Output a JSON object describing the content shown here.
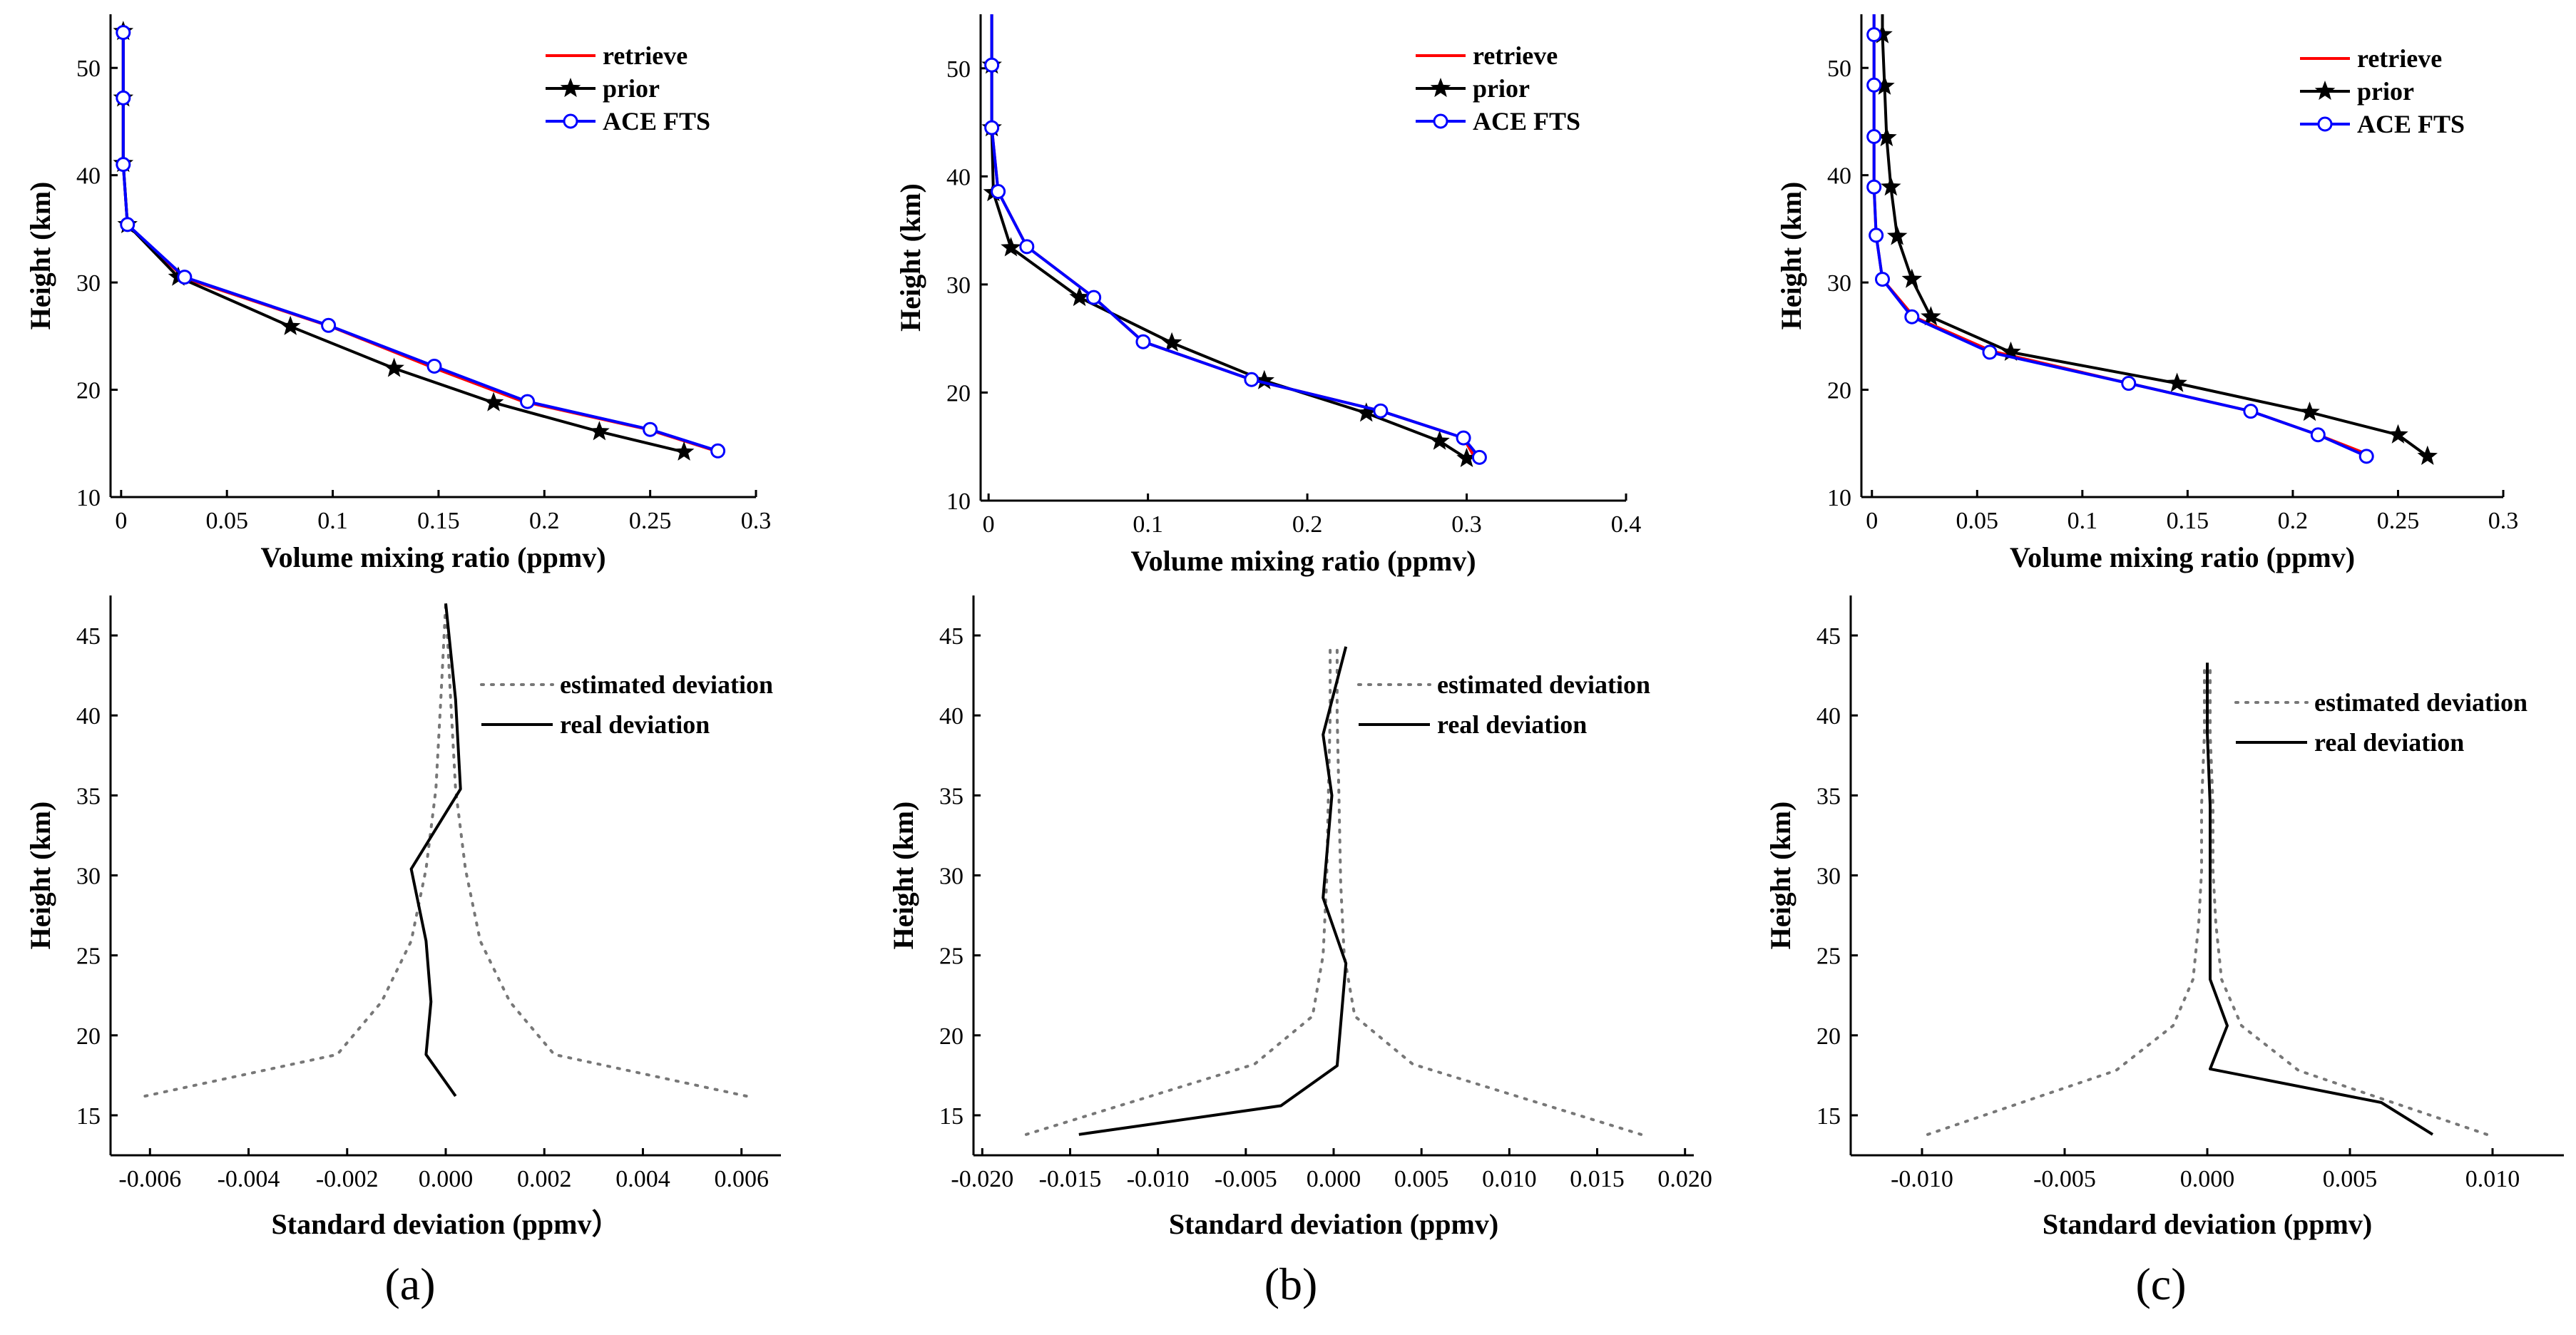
{
  "panel_labels": [
    "(a)",
    "(b)",
    "(c)"
  ],
  "chart_data": [
    {
      "id": "a-top",
      "type": "line",
      "xlabel": "Volume mixing ratio (ppmv)",
      "ylabel": "Height (km)",
      "xlim": [
        -0.005,
        0.3
      ],
      "ylim": [
        10,
        55
      ],
      "xticks": [
        0,
        0.05,
        0.1,
        0.15,
        0.2,
        0.25,
        0.3
      ],
      "xtick_labels": [
        "0",
        "0.05",
        "0.1",
        "0.15",
        "0.2",
        "0.25",
        "0.3"
      ],
      "yticks": [
        10,
        20,
        30,
        40,
        50
      ],
      "ytick_labels": [
        "10",
        "20",
        "30",
        "40",
        "50"
      ],
      "legend": [
        "retrieve",
        "prior",
        "ACE FTS"
      ],
      "series": [
        {
          "name": "retrieve",
          "color": "#ff0000",
          "marker": "none",
          "points": [
            [
              0.281,
              14.3
            ],
            [
              0.249,
              16.3
            ],
            [
              0.19,
              18.9
            ],
            [
              0.147,
              22.1
            ],
            [
              0.099,
              25.9
            ],
            [
              0.03,
              30.4
            ],
            [
              0.003,
              35.4
            ],
            [
              0.001,
              41
            ],
            [
              0.001,
              47.2
            ],
            [
              0.001,
              53.3
            ]
          ]
        },
        {
          "name": "prior",
          "color": "#000000",
          "marker": "star",
          "points": [
            [
              0.266,
              14.2
            ],
            [
              0.226,
              16.1
            ],
            [
              0.176,
              18.8
            ],
            [
              0.129,
              22
            ],
            [
              0.08,
              25.9
            ],
            [
              0.027,
              30.5
            ],
            [
              0.003,
              35.4
            ],
            [
              0.001,
              41.1
            ],
            [
              0.001,
              47.2
            ],
            [
              0.001,
              53.4
            ]
          ]
        },
        {
          "name": "ACE FTS",
          "color": "#0000ff",
          "marker": "circle",
          "points": [
            [
              0.282,
              14.3
            ],
            [
              0.25,
              16.3
            ],
            [
              0.192,
              18.9
            ],
            [
              0.148,
              22.2
            ],
            [
              0.098,
              26
            ],
            [
              0.03,
              30.5
            ],
            [
              0.003,
              35.4
            ],
            [
              0.001,
              41
            ],
            [
              0.001,
              47.2
            ],
            [
              0.001,
              53.3
            ]
          ]
        }
      ]
    },
    {
      "id": "a-bottom",
      "type": "line",
      "xlabel": "Standard deviation  (ppmv）",
      "ylabel": "Height (km)",
      "xlim": [
        -0.0068,
        0.0068
      ],
      "ylim": [
        12.5,
        47.5
      ],
      "xticks": [
        -0.006,
        -0.004,
        -0.002,
        0,
        0.002,
        0.004,
        0.006
      ],
      "xtick_labels": [
        "-0.006",
        "-0.004",
        "-0.002",
        "0.000",
        "0.002",
        "0.004",
        "0.006"
      ],
      "yticks": [
        15,
        20,
        25,
        30,
        35,
        40,
        45
      ],
      "ytick_labels": [
        "15",
        "20",
        "25",
        "30",
        "35",
        "40",
        "45"
      ],
      "legend": [
        "estimated deviation",
        "real deviation"
      ],
      "series": [
        {
          "name": "estimated deviation (negative)",
          "color": "#777777",
          "dash": "dotted",
          "points": [
            [
              -0.0061,
              16.2
            ],
            [
              -0.0022,
              18.8
            ],
            [
              -0.0013,
              22.1
            ],
            [
              -0.0007,
              25.9
            ],
            [
              -0.0004,
              30.4
            ],
            [
              -0.0002,
              35.4
            ],
            [
              -0.0001,
              41
            ],
            [
              0,
              47
            ]
          ]
        },
        {
          "name": "estimated deviation (positive)",
          "color": "#777777",
          "dash": "dotted",
          "points": [
            [
              0.0061,
              16.2
            ],
            [
              0.0022,
              18.8
            ],
            [
              0.0013,
              22.1
            ],
            [
              0.0007,
              25.9
            ],
            [
              0.0004,
              30.4
            ],
            [
              0.0002,
              35.4
            ],
            [
              0.0001,
              41
            ],
            [
              0,
              47
            ]
          ]
        },
        {
          "name": "real deviation",
          "color": "#000000",
          "dash": "solid",
          "points": [
            [
              0.0002,
              16.2
            ],
            [
              -0.0004,
              18.8
            ],
            [
              -0.0003,
              22.1
            ],
            [
              -0.0004,
              25.9
            ],
            [
              -0.0007,
              30.4
            ],
            [
              0.0003,
              35.4
            ],
            [
              0.0002,
              41
            ],
            [
              0,
              47
            ]
          ]
        }
      ]
    },
    {
      "id": "b-top",
      "type": "line",
      "xlabel": "Volume mixing ratio (ppmv)",
      "ylabel": "Height (km)",
      "xlim": [
        -0.005,
        0.4
      ],
      "ylim": [
        10,
        55
      ],
      "xticks": [
        0,
        0.1,
        0.2,
        0.3,
        0.4
      ],
      "xtick_labels": [
        "0",
        "0.1",
        "0.2",
        "0.3",
        "0.4"
      ],
      "yticks": [
        10,
        20,
        30,
        40,
        50
      ],
      "ytick_labels": [
        "10",
        "20",
        "30",
        "40",
        "50"
      ],
      "legend": [
        "retrieve",
        "prior",
        "ACE FTS"
      ],
      "series": [
        {
          "name": "retrieve",
          "color": "#ff0000",
          "marker": "none",
          "points": [
            [
              0.305,
              14
            ],
            [
              0.298,
              15.8
            ],
            [
              0.246,
              18.3
            ],
            [
              0.165,
              21.2
            ],
            [
              0.097,
              24.7
            ],
            [
              0.066,
              28.8
            ],
            [
              0.024,
              33.5
            ],
            [
              0.006,
              38.6
            ],
            [
              0.002,
              44.5
            ],
            [
              0.002,
              50.3
            ],
            [
              0.002,
              55
            ]
          ]
        },
        {
          "name": "prior",
          "color": "#000000",
          "marker": "star",
          "points": [
            [
              0.3,
              13.9
            ],
            [
              0.283,
              15.5
            ],
            [
              0.237,
              18.1
            ],
            [
              0.173,
              21.1
            ],
            [
              0.115,
              24.6
            ],
            [
              0.057,
              28.8
            ],
            [
              0.014,
              33.4
            ],
            [
              0.003,
              38.5
            ],
            [
              0.002,
              44.5
            ],
            [
              0.002,
              50.3
            ],
            [
              0.002,
              55
            ]
          ]
        },
        {
          "name": "ACE FTS",
          "color": "#0000ff",
          "marker": "circle",
          "points": [
            [
              0.308,
              14
            ],
            [
              0.298,
              15.8
            ],
            [
              0.246,
              18.3
            ],
            [
              0.165,
              21.2
            ],
            [
              0.097,
              24.7
            ],
            [
              0.066,
              28.8
            ],
            [
              0.024,
              33.5
            ],
            [
              0.006,
              38.6
            ],
            [
              0.002,
              44.5
            ],
            [
              0.002,
              50.3
            ],
            [
              0.002,
              55
            ]
          ]
        }
      ]
    },
    {
      "id": "b-bottom",
      "type": "line",
      "xlabel": "Standard deviation (ppmv)",
      "ylabel": "Height (km)",
      "xlim": [
        -0.0205,
        0.0205
      ],
      "ylim": [
        12.5,
        47.5
      ],
      "xticks": [
        -0.02,
        -0.015,
        -0.01,
        -0.005,
        0,
        0.005,
        0.01,
        0.015,
        0.02
      ],
      "xtick_labels": [
        "-0.020",
        "-0.015",
        "-0.010",
        "-0.005",
        "0.000",
        "0.005",
        "0.010",
        "0.015",
        "0.020"
      ],
      "yticks": [
        15,
        20,
        25,
        30,
        35,
        40,
        45
      ],
      "ytick_labels": [
        "15",
        "20",
        "25",
        "30",
        "35",
        "40",
        "45"
      ],
      "legend": [
        "estimated deviation",
        "real deviation"
      ],
      "series": [
        {
          "name": "estimated deviation (negative)",
          "color": "#777777",
          "dash": "dotted",
          "points": [
            [
              -0.0175,
              13.8
            ],
            [
              -0.0045,
              18.2
            ],
            [
              -0.0012,
              21.2
            ],
            [
              -0.0006,
              25
            ],
            [
              -0.0004,
              29.5
            ],
            [
              -0.0003,
              35
            ],
            [
              -0.0002,
              40
            ],
            [
              -0.0002,
              44.3
            ]
          ]
        },
        {
          "name": "estimated deviation (positive)",
          "color": "#777777",
          "dash": "dotted",
          "points": [
            [
              0.0175,
              13.8
            ],
            [
              0.0045,
              18.2
            ],
            [
              0.0012,
              21.2
            ],
            [
              0.0006,
              25
            ],
            [
              0.0004,
              29.5
            ],
            [
              0.0003,
              35
            ],
            [
              0.0002,
              40
            ],
            [
              0.0002,
              44.3
            ]
          ]
        },
        {
          "name": "real deviation",
          "color": "#000000",
          "dash": "solid",
          "points": [
            [
              -0.0145,
              13.8
            ],
            [
              -0.003,
              15.6
            ],
            [
              0.0002,
              18.1
            ],
            [
              0.0007,
              24.5
            ],
            [
              -0.0006,
              28.6
            ],
            [
              -0.0001,
              35
            ],
            [
              -0.0006,
              38.8
            ],
            [
              0.0007,
              44.3
            ]
          ]
        }
      ]
    },
    {
      "id": "c-top",
      "type": "line",
      "xlabel": "Volume mixing ratio (ppmv)",
      "ylabel": "Height (km)",
      "xlim": [
        -0.005,
        0.3
      ],
      "ylim": [
        10,
        55
      ],
      "xticks": [
        0,
        0.05,
        0.1,
        0.15,
        0.2,
        0.25,
        0.3
      ],
      "xtick_labels": [
        "0",
        "0.05",
        "0.1",
        "0.15",
        "0.2",
        "0.25",
        "0.3"
      ],
      "yticks": [
        10,
        20,
        30,
        40,
        50
      ],
      "ytick_labels": [
        "10",
        "20",
        "30",
        "40",
        "50"
      ],
      "legend": [
        "retrieve",
        "prior",
        "ACE FTS"
      ],
      "series": [
        {
          "name": "retrieve",
          "color": "#ff0000",
          "marker": "none",
          "points": [
            [
              0.238,
              13.8
            ],
            [
              0.212,
              15.8
            ],
            [
              0.18,
              18
            ],
            [
              0.122,
              20.6
            ],
            [
              0.057,
              23.6
            ],
            [
              0.02,
              26.8
            ],
            [
              0.005,
              30.3
            ],
            [
              0.002,
              34.4
            ],
            [
              0.001,
              38.9
            ],
            [
              0.001,
              43.6
            ],
            [
              0.001,
              48.4
            ],
            [
              0.001,
              53.1
            ],
            [
              0.001,
              55
            ]
          ]
        },
        {
          "name": "prior",
          "color": "#000000",
          "marker": "star",
          "points": [
            [
              0.264,
              13.8
            ],
            [
              0.25,
              15.8
            ],
            [
              0.208,
              17.9
            ],
            [
              0.145,
              20.6
            ],
            [
              0.066,
              23.5
            ],
            [
              0.028,
              26.8
            ],
            [
              0.019,
              30.3
            ],
            [
              0.012,
              34.3
            ],
            [
              0.009,
              38.9
            ],
            [
              0.007,
              43.5
            ],
            [
              0.006,
              48.3
            ],
            [
              0.005,
              53.1
            ],
            [
              0.005,
              55
            ]
          ]
        },
        {
          "name": "ACE FTS",
          "color": "#0000ff",
          "marker": "circle",
          "points": [
            [
              0.235,
              13.8
            ],
            [
              0.212,
              15.8
            ],
            [
              0.18,
              18
            ],
            [
              0.122,
              20.6
            ],
            [
              0.056,
              23.5
            ],
            [
              0.019,
              26.8
            ],
            [
              0.005,
              30.3
            ],
            [
              0.002,
              34.4
            ],
            [
              0.001,
              38.9
            ],
            [
              0.001,
              43.6
            ],
            [
              0.001,
              48.4
            ],
            [
              0.001,
              53.1
            ],
            [
              0.001,
              55
            ]
          ]
        }
      ]
    },
    {
      "id": "c-bottom",
      "type": "line",
      "xlabel": "Standard deviation (ppmv)",
      "ylabel": "Height (km)",
      "xlim": [
        -0.0125,
        0.0125
      ],
      "ylim": [
        12.5,
        47.5
      ],
      "xticks": [
        -0.01,
        -0.005,
        0,
        0.005,
        0.01
      ],
      "xtick_labels": [
        "-0.010",
        "-0.005",
        "0.000",
        "0.005",
        "0.010"
      ],
      "yticks": [
        15,
        20,
        25,
        30,
        35,
        40,
        45
      ],
      "ytick_labels": [
        "15",
        "20",
        "25",
        "30",
        "35",
        "40",
        "45"
      ],
      "legend": [
        "estimated deviation",
        "real deviation"
      ],
      "series": [
        {
          "name": "estimated deviation (negative)",
          "color": "#777777",
          "dash": "dotted",
          "points": [
            [
              -0.0098,
              13.8
            ],
            [
              -0.0032,
              17.8
            ],
            [
              -0.0012,
              20.6
            ],
            [
              -0.0005,
              23.5
            ],
            [
              -0.0003,
              27
            ],
            [
              -0.0002,
              30.3
            ],
            [
              -0.0002,
              34.4
            ],
            [
              -0.0001,
              38.9
            ],
            [
              -0.0001,
              43.3
            ]
          ]
        },
        {
          "name": "estimated deviation (positive)",
          "color": "#777777",
          "dash": "dotted",
          "points": [
            [
              0.0098,
              13.8
            ],
            [
              0.0032,
              17.8
            ],
            [
              0.0012,
              20.6
            ],
            [
              0.0005,
              23.5
            ],
            [
              0.0003,
              27
            ],
            [
              0.0002,
              30.3
            ],
            [
              0.0002,
              34.4
            ],
            [
              0.0001,
              38.9
            ],
            [
              0.0001,
              43.3
            ]
          ]
        },
        {
          "name": "real deviation",
          "color": "#000000",
          "dash": "solid",
          "points": [
            [
              0.0079,
              13.8
            ],
            [
              0.0061,
              15.8
            ],
            [
              0.0001,
              17.9
            ],
            [
              0.0007,
              20.6
            ],
            [
              0.0001,
              23.5
            ],
            [
              0.0001,
              27
            ],
            [
              0.0001,
              30.3
            ],
            [
              0.0001,
              34.4
            ],
            [
              0,
              38.9
            ],
            [
              0,
              43.3
            ]
          ]
        }
      ]
    }
  ]
}
